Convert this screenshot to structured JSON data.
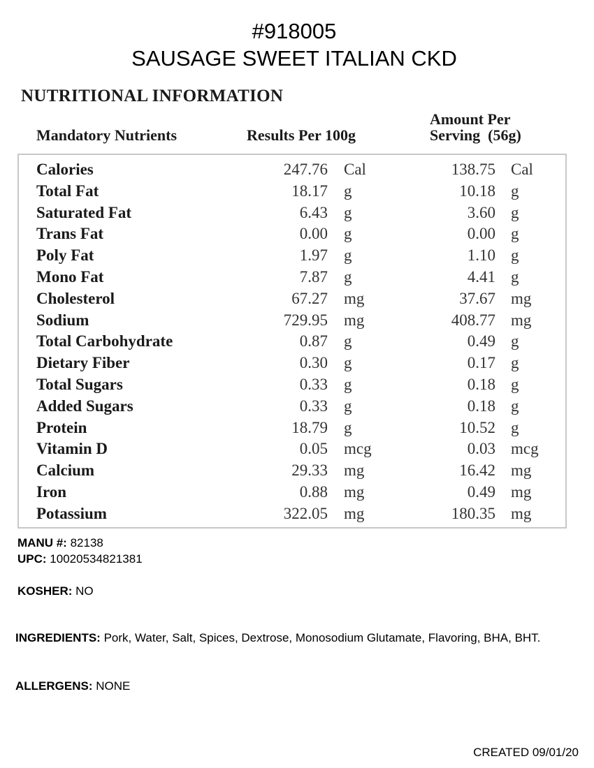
{
  "header": {
    "item_number": "#918005",
    "product_name": "SAUSAGE SWEET ITALIAN CKD"
  },
  "section_heading": "NUTRITIONAL INFORMATION",
  "columns": {
    "nutrient": "Mandatory Nutrients",
    "per_100g": "Results Per 100g",
    "per_serving_line1": "Amount Per",
    "per_serving_line2": "Serving  (56g)"
  },
  "nutrients": [
    {
      "name": "Calories",
      "per100": "247.76",
      "unit1": "Cal",
      "serving": "138.75",
      "unit2": "Cal"
    },
    {
      "name": "Total Fat",
      "per100": "18.17",
      "unit1": "g",
      "serving": "10.18",
      "unit2": "g"
    },
    {
      "name": "Saturated Fat",
      "per100": "6.43",
      "unit1": "g",
      "serving": "3.60",
      "unit2": "g"
    },
    {
      "name": "Trans Fat",
      "per100": "0.00",
      "unit1": "g",
      "serving": "0.00",
      "unit2": "g"
    },
    {
      "name": "Poly Fat",
      "per100": "1.97",
      "unit1": "g",
      "serving": "1.10",
      "unit2": "g"
    },
    {
      "name": "Mono Fat",
      "per100": "7.87",
      "unit1": "g",
      "serving": "4.41",
      "unit2": "g"
    },
    {
      "name": "Cholesterol",
      "per100": "67.27",
      "unit1": "mg",
      "serving": "37.67",
      "unit2": "mg"
    },
    {
      "name": "Sodium",
      "per100": "729.95",
      "unit1": "mg",
      "serving": "408.77",
      "unit2": "mg"
    },
    {
      "name": "Total Carbohydrate",
      "per100": "0.87",
      "unit1": "g",
      "serving": "0.49",
      "unit2": "g"
    },
    {
      "name": "Dietary Fiber",
      "per100": "0.30",
      "unit1": "g",
      "serving": "0.17",
      "unit2": "g"
    },
    {
      "name": "Total Sugars",
      "per100": "0.33",
      "unit1": "g",
      "serving": "0.18",
      "unit2": "g"
    },
    {
      "name": "Added Sugars",
      "per100": "0.33",
      "unit1": "g",
      "serving": "0.18",
      "unit2": "g"
    },
    {
      "name": "Protein",
      "per100": "18.79",
      "unit1": "g",
      "serving": "10.52",
      "unit2": "g"
    },
    {
      "name": "Vitamin D",
      "per100": "0.05",
      "unit1": "mcg",
      "serving": "0.03",
      "unit2": "mcg"
    },
    {
      "name": "Calcium",
      "per100": "29.33",
      "unit1": "mg",
      "serving": "16.42",
      "unit2": "mg"
    },
    {
      "name": "Iron",
      "per100": "0.88",
      "unit1": "mg",
      "serving": "0.49",
      "unit2": "mg"
    },
    {
      "name": "Potassium",
      "per100": "322.05",
      "unit1": "mg",
      "serving": "180.35",
      "unit2": "mg"
    }
  ],
  "details": {
    "manu_label": "MANU #:",
    "manu_value": "82138",
    "upc_label": "UPC:",
    "upc_value": "10020534821381",
    "kosher_label": "KOSHER:",
    "kosher_value": "NO",
    "ingredients_label": "INGREDIENTS:",
    "ingredients_value": "Pork, Water, Salt, Spices, Dextrose, Monosodium Glutamate, Flavoring, BHA, BHT.",
    "allergens_label": "ALLERGENS:",
    "allergens_value": "NONE"
  },
  "footer": {
    "created": "CREATED 09/01/20"
  }
}
